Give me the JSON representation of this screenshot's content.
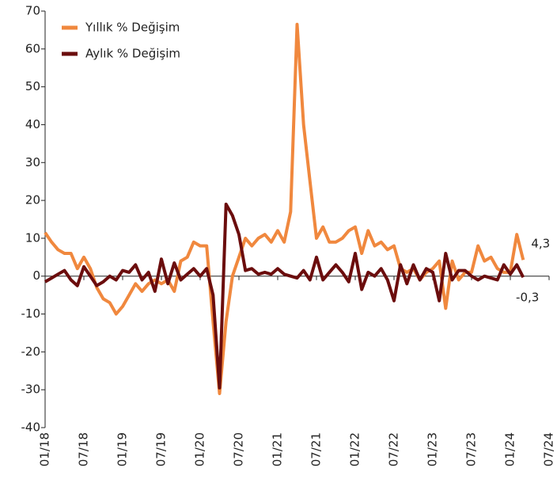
{
  "chart_data": {
    "type": "line",
    "categories": [
      "01/18",
      null,
      null,
      null,
      null,
      null,
      "07/18",
      null,
      null,
      null,
      null,
      null,
      "01/19",
      null,
      null,
      null,
      null,
      null,
      "07/19",
      null,
      null,
      null,
      null,
      null,
      "01/20",
      null,
      null,
      null,
      null,
      null,
      "07/20",
      null,
      null,
      null,
      null,
      null,
      "01/21",
      null,
      null,
      null,
      null,
      null,
      "07/21",
      null,
      null,
      null,
      null,
      null,
      "01/22",
      null,
      null,
      null,
      null,
      null,
      "07/22",
      null,
      null,
      null,
      null,
      null,
      "01/23",
      null,
      null,
      null,
      null,
      null,
      "07/23",
      null,
      null,
      null,
      null,
      null,
      "01/24",
      null,
      null,
      null,
      null,
      null,
      "07/24"
    ],
    "series": [
      {
        "name": "Yıllık % Değişim",
        "color": "#f0883e",
        "values": [
          11.5,
          9,
          7,
          6,
          6,
          2,
          5,
          2,
          -3,
          -6,
          -7,
          -10,
          -8,
          -5,
          -2,
          -4,
          -2,
          -1,
          -2,
          -1,
          -4,
          4,
          5,
          9,
          8,
          8,
          -12,
          -31,
          -12,
          0,
          5,
          10,
          8,
          10,
          11,
          9,
          12,
          9,
          17,
          66.5,
          40,
          25,
          10,
          13,
          9,
          9,
          10,
          12,
          13,
          6,
          12,
          8,
          9,
          7,
          8,
          2,
          1,
          2,
          -1,
          1,
          2,
          4,
          -8.5,
          4,
          -1,
          1,
          1,
          8,
          4,
          5,
          2,
          1,
          1,
          11,
          4.3,
          null,
          null,
          null,
          null
        ],
        "value_labels": [
          null,
          null,
          null,
          null,
          null,
          null,
          null,
          null,
          null,
          null,
          null,
          null,
          null,
          null,
          null,
          null,
          null,
          null,
          null,
          null,
          null,
          null,
          null,
          null,
          null,
          null,
          null,
          null,
          null,
          null,
          null,
          null,
          null,
          null,
          null,
          null,
          null,
          null,
          null,
          null,
          null,
          null,
          null,
          null,
          null,
          null,
          null,
          null,
          null,
          null,
          null,
          null,
          null,
          null,
          null,
          null,
          null,
          null,
          null,
          null,
          null,
          null,
          null,
          null,
          null,
          null,
          null,
          null,
          null,
          null,
          null,
          null,
          null,
          null,
          "4,3",
          null,
          null,
          null,
          null
        ]
      },
      {
        "name": "Aylık % Değişim",
        "color": "#6b0d0d",
        "values": [
          -1.5,
          -0.5,
          0.5,
          1.5,
          -1,
          -2.5,
          2.5,
          0,
          -2.5,
          -1.5,
          0,
          -1,
          1.5,
          1,
          3,
          -1,
          1,
          -4,
          4.5,
          -2,
          3.5,
          -1,
          0.5,
          2,
          0,
          2,
          -5,
          -29.5,
          19,
          16,
          11,
          1.5,
          2,
          0.5,
          1,
          0.5,
          2,
          0.5,
          0,
          -0.5,
          1.5,
          -1,
          5,
          -1,
          1,
          3,
          1,
          -1.5,
          6,
          -3.5,
          1,
          0,
          2,
          -1,
          -6.5,
          3,
          -2,
          3,
          -1,
          2,
          1,
          -6.5,
          6,
          -1,
          1.5,
          1.5,
          0,
          -1,
          0,
          -0.5,
          -1,
          3,
          0.5,
          3,
          -0.3,
          null,
          null,
          null,
          null
        ],
        "value_labels": [
          null,
          null,
          null,
          null,
          null,
          null,
          null,
          null,
          null,
          null,
          null,
          null,
          null,
          null,
          null,
          null,
          null,
          null,
          null,
          null,
          null,
          null,
          null,
          null,
          null,
          null,
          null,
          null,
          null,
          null,
          null,
          null,
          null,
          null,
          null,
          null,
          null,
          null,
          null,
          null,
          null,
          null,
          null,
          null,
          null,
          null,
          null,
          null,
          null,
          null,
          null,
          null,
          null,
          null,
          null,
          null,
          null,
          null,
          null,
          null,
          null,
          null,
          null,
          null,
          null,
          null,
          null,
          null,
          null,
          null,
          null,
          null,
          null,
          null,
          "-0,3",
          null,
          null,
          null,
          null
        ]
      }
    ],
    "ylim": [
      -40,
      70
    ],
    "yticks": [
      -40,
      -30,
      -20,
      -10,
      0,
      10,
      20,
      30,
      40,
      50,
      60,
      70
    ],
    "legend": "upper left"
  }
}
